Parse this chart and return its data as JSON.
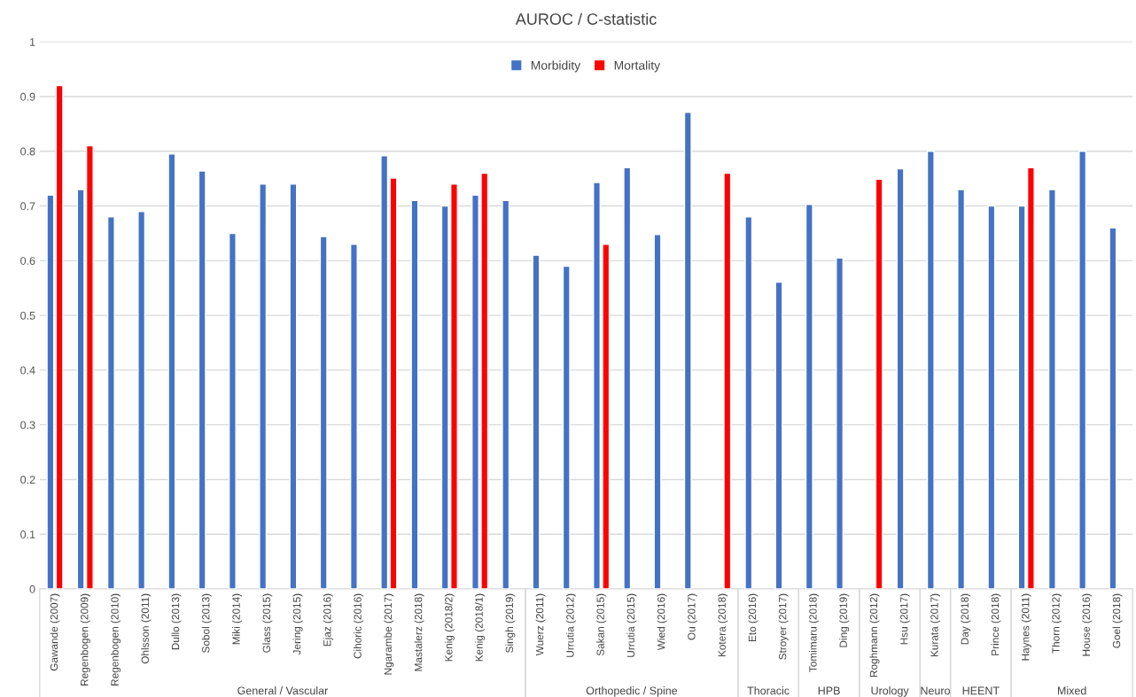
{
  "chart_data": {
    "type": "bar",
    "title": "AUROC / C-statistic",
    "categories": [
      "Gawande (2007)",
      "Regenbogen (2009)",
      "Regenbogen (2010)",
      "Ohlsson (2011)",
      "Dullo (2013)",
      "Sobol (2013)",
      "Miki (2014)",
      "Glass (2015)",
      "Jering (2015)",
      "Ejaz (2016)",
      "Cihoric (2016)",
      "Ngarambe (2017)",
      "Mastalerz (2018)",
      "Kenig (2018/2)",
      "Kenig (2018/1)",
      "Singh (2019)",
      "Wuerz (2011)",
      "Urrutia (2012)",
      "Sakan (2015)",
      "Urrutia (2015)",
      "Wied (2016)",
      "Ou (2017)",
      "Kotera (2018)",
      "Eto (2016)",
      "Stroyer (2017)",
      "Tomimaru (2018)",
      "Ding (2019)",
      "Roghmann (2012)",
      "Hsu (2017)",
      "Kurata (2017)",
      "Day (2018)",
      "Prince (2018)",
      "Haynes (2011)",
      "Thorn (2012)",
      "House (2016)",
      "Goel (2018)"
    ],
    "series": [
      {
        "name": "Morbidity",
        "color": "#4472c4",
        "values": [
          0.72,
          0.73,
          0.68,
          0.69,
          0.795,
          0.764,
          0.65,
          0.74,
          0.74,
          0.644,
          0.63,
          0.792,
          0.71,
          0.7,
          0.72,
          0.71,
          0.61,
          0.59,
          0.743,
          0.77,
          0.648,
          0.871,
          null,
          0.68,
          0.561,
          0.703,
          0.605,
          null,
          0.768,
          0.8,
          0.73,
          0.7,
          0.7,
          0.73,
          0.8,
          0.66
        ]
      },
      {
        "name": "Mortality",
        "color": "#ff0000",
        "values": [
          0.92,
          0.81,
          null,
          null,
          null,
          null,
          null,
          null,
          null,
          null,
          null,
          0.751,
          null,
          0.74,
          0.76,
          null,
          null,
          null,
          0.63,
          null,
          null,
          null,
          0.76,
          null,
          null,
          null,
          null,
          0.749,
          null,
          null,
          null,
          null,
          0.77,
          null,
          null,
          null
        ]
      }
    ],
    "annotations": [
      "General / Vascular",
      "Orthopedic / Spine",
      "Thoracic",
      "HPB",
      "Urology",
      "Neuro",
      "HEENT",
      "Mixed"
    ],
    "ylim": [
      0,
      1
    ],
    "yticks": [
      0,
      0.1,
      0.2,
      0.3,
      0.4,
      0.5,
      0.6,
      0.7,
      0.8,
      0.9,
      1
    ],
    "grid": "y",
    "legend": "top"
  }
}
